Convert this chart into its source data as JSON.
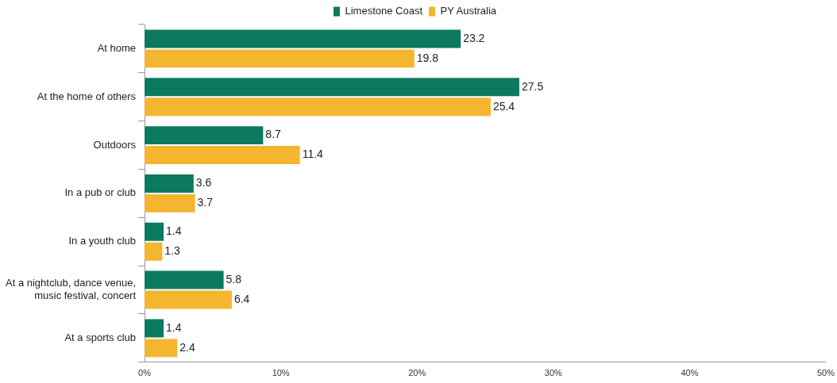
{
  "chart_data": {
    "type": "bar",
    "orientation": "horizontal",
    "categories": [
      "At home",
      "At the home of others",
      "Outdoors",
      "In a pub or club",
      "In a youth club",
      "At a nightclub, dance venue, music festival, concert",
      "At a sports club"
    ],
    "series": [
      {
        "name": "Limestone Coast",
        "color": "#0b7a5e",
        "values": [
          23.2,
          27.5,
          8.7,
          3.6,
          1.4,
          5.8,
          1.4
        ]
      },
      {
        "name": "PY Australia",
        "color": "#f4b52f",
        "values": [
          19.8,
          25.4,
          11.4,
          3.7,
          1.3,
          6.4,
          2.4
        ]
      }
    ],
    "xlim": [
      0,
      50
    ],
    "xticks": [
      {
        "value": 0,
        "label": "0%"
      },
      {
        "value": 10,
        "label": "10%"
      },
      {
        "value": 20,
        "label": "20%"
      },
      {
        "value": 30,
        "label": "30%"
      },
      {
        "value": 40,
        "label": "40%"
      },
      {
        "value": 50,
        "label": "50%"
      }
    ],
    "data_labels": true,
    "legend": "top",
    "grid": false
  }
}
